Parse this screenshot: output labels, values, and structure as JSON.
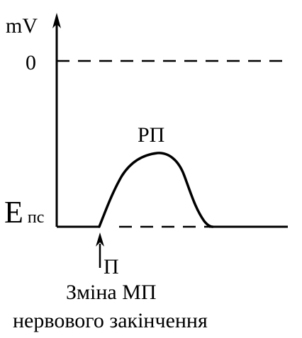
{
  "labels": {
    "y_axis_unit": "mV",
    "zero_level": "0",
    "resting_level_main": "E",
    "resting_level_sub": "пс",
    "response_label": "РП",
    "stimulus_label": "П",
    "caption_line1": "Зміна МП",
    "caption_line2": "нервового закінчення"
  },
  "colors": {
    "ink": "#000000",
    "background": "#ffffff"
  }
}
